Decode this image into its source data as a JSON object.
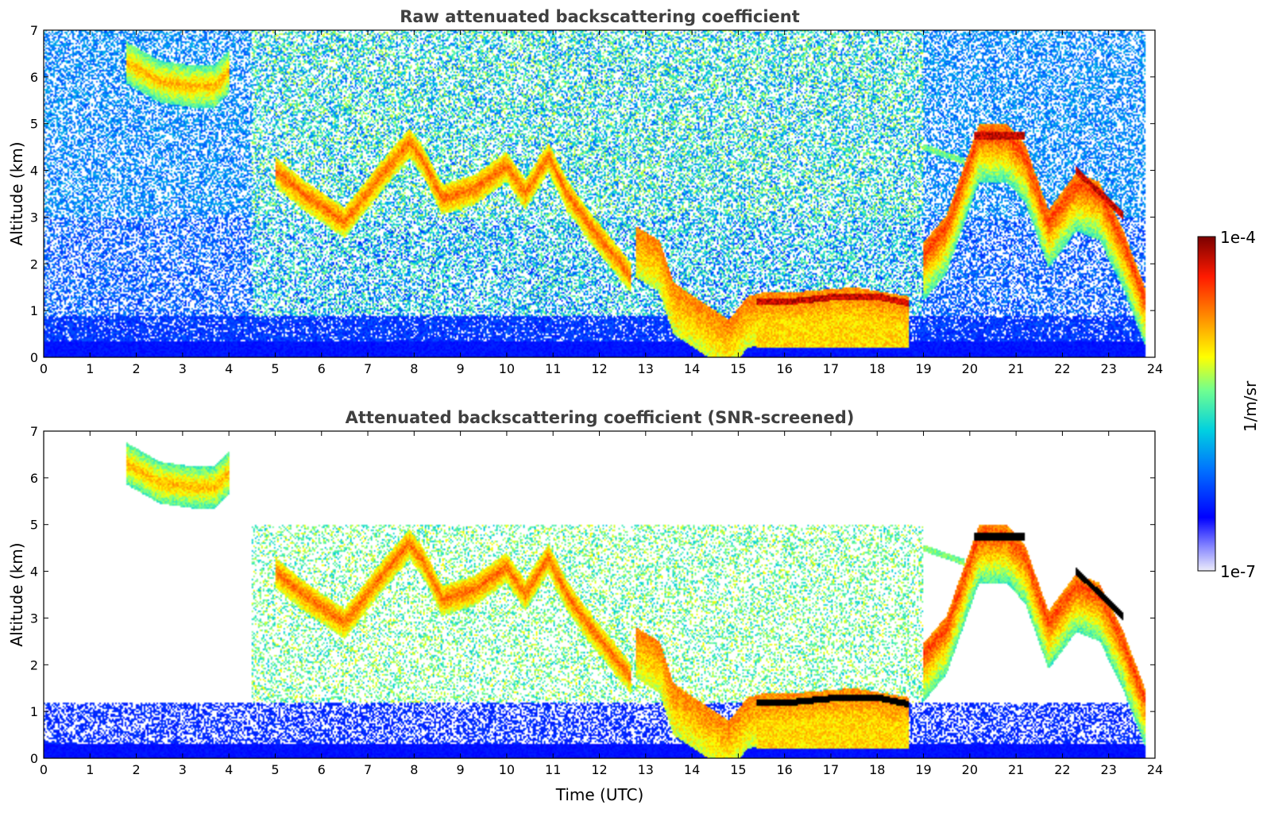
{
  "chart_data": [
    {
      "type": "heatmap",
      "title": "Raw attenuated backscattering coefficient",
      "xlabel": "",
      "ylabel": "Altitude (km)",
      "xlim": [
        0,
        24
      ],
      "ylim": [
        0,
        7
      ],
      "x_ticks": [
        0,
        1,
        2,
        3,
        4,
        5,
        6,
        7,
        8,
        9,
        10,
        11,
        12,
        13,
        14,
        15,
        16,
        17,
        18,
        19,
        20,
        21,
        22,
        23,
        24
      ],
      "y_ticks": [
        0,
        1,
        2,
        3,
        4,
        5,
        6,
        7
      ],
      "screened": false,
      "features": {
        "cirrus_top": [
          [
            1.8,
            6.3
          ],
          [
            2.5,
            5.9
          ],
          [
            3.2,
            5.8
          ],
          [
            3.7,
            5.8
          ],
          [
            4.0,
            6.1
          ]
        ],
        "main_layer_upper": [
          [
            5.0,
            4.0
          ],
          [
            5.6,
            3.5
          ],
          [
            6.5,
            2.9
          ],
          [
            7.3,
            3.9
          ],
          [
            7.9,
            4.6
          ],
          [
            8.2,
            4.2
          ],
          [
            8.6,
            3.4
          ],
          [
            9.3,
            3.6
          ],
          [
            10.0,
            4.1
          ],
          [
            10.4,
            3.5
          ],
          [
            10.9,
            4.3
          ],
          [
            11.3,
            3.5
          ],
          [
            11.8,
            2.8
          ],
          [
            12.3,
            2.2
          ],
          [
            12.7,
            1.7
          ]
        ],
        "main_layer_lower": [
          [
            12.8,
            2.6
          ],
          [
            13.3,
            2.3
          ],
          [
            13.6,
            1.4
          ],
          [
            14.2,
            1.0
          ],
          [
            14.8,
            0.6
          ],
          [
            15.2,
            1.1
          ],
          [
            15.6,
            1.2
          ],
          [
            16.3,
            1.2
          ],
          [
            17.5,
            1.3
          ],
          [
            18.7,
            1.1
          ]
        ],
        "dense_band": [
          [
            15.4,
            1.2
          ],
          [
            16.2,
            1.2
          ],
          [
            17.2,
            1.3
          ],
          [
            18.0,
            1.3
          ],
          [
            18.7,
            1.15
          ]
        ],
        "evening_clouds": [
          [
            19.0,
            2.2
          ],
          [
            19.5,
            2.8
          ],
          [
            20.2,
            4.75
          ],
          [
            20.8,
            4.75
          ],
          [
            21.2,
            4.3
          ],
          [
            21.7,
            2.9
          ],
          [
            22.3,
            3.7
          ],
          [
            22.8,
            3.5
          ],
          [
            23.3,
            2.5
          ],
          [
            23.8,
            1.2
          ]
        ],
        "boundary_layer_top": 0.7
      }
    },
    {
      "type": "heatmap",
      "title": "Attenuated backscattering coefficient (SNR-screened)",
      "xlabel": "Time (UTC)",
      "ylabel": "Altitude (km)",
      "xlim": [
        0,
        24
      ],
      "ylim": [
        0,
        7
      ],
      "x_ticks": [
        0,
        1,
        2,
        3,
        4,
        5,
        6,
        7,
        8,
        9,
        10,
        11,
        12,
        13,
        14,
        15,
        16,
        17,
        18,
        19,
        20,
        21,
        22,
        23,
        24
      ],
      "y_ticks": [
        0,
        1,
        2,
        3,
        4,
        5,
        6,
        7
      ],
      "screened": true
    }
  ],
  "colorbar": {
    "label": "1/m/sr",
    "min_label": "1e-7",
    "max_label": "1e-4",
    "scale": "log",
    "colormap": [
      "#e8e8f8",
      "#7a7aff",
      "#0000ff",
      "#0080ff",
      "#00d8d8",
      "#80ff80",
      "#ffff00",
      "#ff8000",
      "#ff0000",
      "#800000"
    ]
  }
}
